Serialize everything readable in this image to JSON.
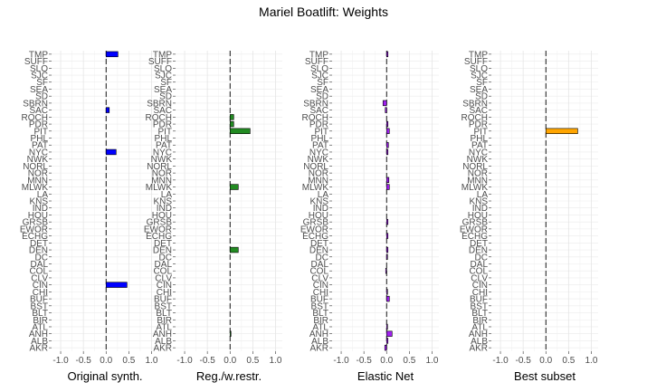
{
  "title": "Mariel Boatlift: Weights",
  "chart_data": {
    "type": "bar",
    "orientation": "horizontal",
    "title": "Mariel Boatlift: Weights",
    "categories": [
      "AKR",
      "ALB",
      "ANH",
      "ATL",
      "BIR",
      "BLT",
      "BST",
      "BUF",
      "CHI",
      "CIN",
      "CLV",
      "COL",
      "DAL",
      "DC",
      "DEN",
      "DET",
      "ECHG",
      "EWOR",
      "GRSB",
      "HOU",
      "IND",
      "KNS",
      "LA",
      "MLWK",
      "MNN",
      "NOR",
      "NORL",
      "NWK",
      "NYC",
      "PAT",
      "PHL",
      "PIT",
      "PDR",
      "ROCH",
      "SAC",
      "SBRN",
      "SD",
      "SEA",
      "SF",
      "SJC",
      "SLO",
      "SUFF",
      "TMP"
    ],
    "xlim": [
      -1.2,
      1.15
    ],
    "xticks": [
      "-1.0",
      "-0.5",
      "0.0",
      "0.5",
      "1.0"
    ],
    "xtick_values": [
      -1.0,
      -0.5,
      0.0,
      0.5,
      1.0
    ],
    "grid": true,
    "panels": [
      {
        "xlabel": "Original synth.",
        "color": "#0000ff",
        "values": {
          "TMP": 0.26,
          "SAC": 0.07,
          "NYC": 0.22,
          "CIN": 0.46
        }
      },
      {
        "xlabel": "Reg./w.restr.",
        "color": "#228b22",
        "values": {
          "ROCH": 0.08,
          "PDR": 0.08,
          "PIT": 0.44,
          "MLWK": 0.18,
          "DEN": 0.18,
          "ANH": 0.02
        }
      },
      {
        "xlabel": "Elastic Net",
        "color": "#a020f0",
        "values": {
          "TMP": 0.03,
          "SBRN": -0.08,
          "SAC": -0.03,
          "PDR": 0.03,
          "PIT": 0.06,
          "PAT": 0.04,
          "NYC": 0.03,
          "MNN": 0.05,
          "MLWK": 0.06,
          "GRSB": 0.03,
          "ECHG": 0.03,
          "DEN": 0.03,
          "DC": 0.02,
          "COL": -0.02,
          "CHI": 0.02,
          "BUF": 0.06,
          "ATL": 0.02,
          "ANH": 0.12,
          "ALB": 0.03,
          "AKR": -0.04
        }
      },
      {
        "xlabel": "Best subset",
        "color": "#ffa500",
        "values": {
          "PIT": 0.7
        }
      }
    ]
  }
}
